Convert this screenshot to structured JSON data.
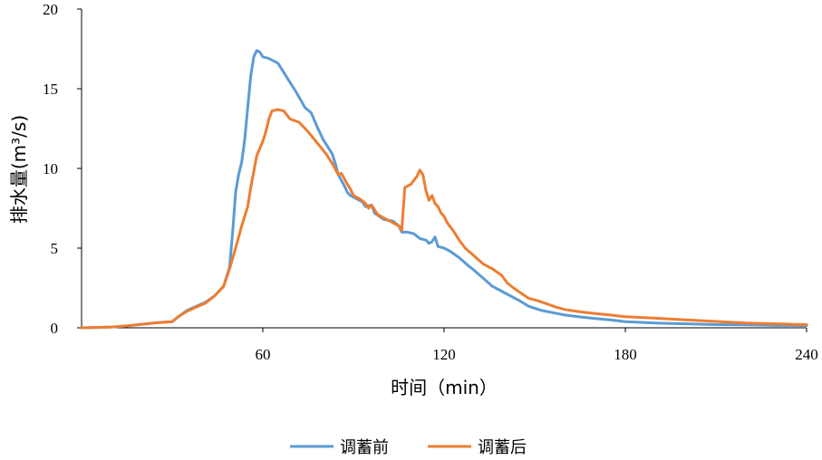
{
  "chart_data": {
    "type": "line",
    "xlabel": "时间（min）",
    "ylabel": "排水量(m³/s)",
    "xlim": [
      0,
      240
    ],
    "ylim": [
      0,
      20
    ],
    "x_ticks": [
      "60",
      "120",
      "180",
      "240"
    ],
    "y_ticks": [
      "0",
      "5",
      "10",
      "15",
      "20"
    ],
    "grid": false,
    "legend_position": "bottom",
    "series": [
      {
        "name": "调蓄前",
        "color": "#5b9bd5",
        "points": [
          [
            0,
            0
          ],
          [
            5,
            0.02
          ],
          [
            10,
            0.05
          ],
          [
            15,
            0.12
          ],
          [
            20,
            0.22
          ],
          [
            25,
            0.32
          ],
          [
            30,
            0.38
          ],
          [
            32,
            0.7
          ],
          [
            35,
            1.1
          ],
          [
            38,
            1.35
          ],
          [
            41,
            1.6
          ],
          [
            44,
            2.0
          ],
          [
            47,
            2.6
          ],
          [
            49,
            3.8
          ],
          [
            50,
            6.0
          ],
          [
            51,
            8.5
          ],
          [
            52,
            9.6
          ],
          [
            53,
            10.4
          ],
          [
            54,
            11.8
          ],
          [
            55,
            13.8
          ],
          [
            56,
            15.8
          ],
          [
            57,
            17.0
          ],
          [
            58,
            17.4
          ],
          [
            59,
            17.3
          ],
          [
            60,
            17.0
          ],
          [
            62,
            16.9
          ],
          [
            65,
            16.6
          ],
          [
            68,
            15.7
          ],
          [
            71,
            14.8
          ],
          [
            74,
            13.8
          ],
          [
            76,
            13.5
          ],
          [
            78,
            12.6
          ],
          [
            80,
            11.8
          ],
          [
            83,
            10.9
          ],
          [
            84,
            10.3
          ],
          [
            85,
            9.6
          ],
          [
            87,
            8.9
          ],
          [
            88,
            8.5
          ],
          [
            89,
            8.3
          ],
          [
            91,
            8.1
          ],
          [
            93,
            7.9
          ],
          [
            94,
            7.6
          ],
          [
            96,
            7.7
          ],
          [
            97,
            7.2
          ],
          [
            100,
            6.8
          ],
          [
            103,
            6.7
          ],
          [
            105,
            6.4
          ],
          [
            106,
            6.0
          ],
          [
            108,
            6.0
          ],
          [
            110,
            5.9
          ],
          [
            112,
            5.6
          ],
          [
            114,
            5.5
          ],
          [
            115,
            5.3
          ],
          [
            116,
            5.4
          ],
          [
            117,
            5.7
          ],
          [
            118,
            5.1
          ],
          [
            120,
            5.0
          ],
          [
            122,
            4.8
          ],
          [
            125,
            4.4
          ],
          [
            128,
            3.9
          ],
          [
            130,
            3.6
          ],
          [
            133,
            3.1
          ],
          [
            136,
            2.6
          ],
          [
            139,
            2.3
          ],
          [
            142,
            2.0
          ],
          [
            145,
            1.7
          ],
          [
            148,
            1.35
          ],
          [
            152,
            1.1
          ],
          [
            156,
            0.95
          ],
          [
            160,
            0.8
          ],
          [
            165,
            0.68
          ],
          [
            170,
            0.58
          ],
          [
            175,
            0.5
          ],
          [
            180,
            0.38
          ],
          [
            190,
            0.3
          ],
          [
            200,
            0.25
          ],
          [
            210,
            0.2
          ],
          [
            220,
            0.18
          ],
          [
            230,
            0.15
          ],
          [
            240,
            0.14
          ]
        ]
      },
      {
        "name": "调蓄后",
        "color": "#ed7d31",
        "points": [
          [
            0,
            0
          ],
          [
            5,
            0.02
          ],
          [
            10,
            0.05
          ],
          [
            15,
            0.12
          ],
          [
            20,
            0.22
          ],
          [
            25,
            0.32
          ],
          [
            30,
            0.38
          ],
          [
            32,
            0.7
          ],
          [
            35,
            1.05
          ],
          [
            38,
            1.3
          ],
          [
            41,
            1.55
          ],
          [
            44,
            2.0
          ],
          [
            47,
            2.6
          ],
          [
            49,
            3.7
          ],
          [
            51,
            5.0
          ],
          [
            53,
            6.4
          ],
          [
            55,
            7.6
          ],
          [
            56,
            8.8
          ],
          [
            58,
            10.8
          ],
          [
            60,
            11.7
          ],
          [
            61,
            12.3
          ],
          [
            62,
            13.1
          ],
          [
            63,
            13.6
          ],
          [
            65,
            13.7
          ],
          [
            67,
            13.6
          ],
          [
            69,
            13.1
          ],
          [
            72,
            12.9
          ],
          [
            75,
            12.3
          ],
          [
            78,
            11.6
          ],
          [
            81,
            10.9
          ],
          [
            83,
            10.3
          ],
          [
            85,
            9.6
          ],
          [
            86,
            9.7
          ],
          [
            88,
            9.0
          ],
          [
            89,
            8.7
          ],
          [
            90,
            8.3
          ],
          [
            92,
            8.1
          ],
          [
            94,
            7.8
          ],
          [
            95,
            7.5
          ],
          [
            96,
            7.7
          ],
          [
            98,
            7.1
          ],
          [
            100,
            6.9
          ],
          [
            103,
            6.6
          ],
          [
            105,
            6.4
          ],
          [
            106,
            6.1
          ],
          [
            107,
            8.8
          ],
          [
            109,
            9.0
          ],
          [
            111,
            9.5
          ],
          [
            112,
            9.9
          ],
          [
            113,
            9.6
          ],
          [
            114,
            8.6
          ],
          [
            115,
            8.0
          ],
          [
            116,
            8.3
          ],
          [
            117,
            7.8
          ],
          [
            118,
            7.6
          ],
          [
            119,
            7.2
          ],
          [
            120,
            7.0
          ],
          [
            121,
            6.6
          ],
          [
            123,
            6.1
          ],
          [
            125,
            5.5
          ],
          [
            127,
            5.0
          ],
          [
            130,
            4.5
          ],
          [
            133,
            4.0
          ],
          [
            136,
            3.7
          ],
          [
            139,
            3.3
          ],
          [
            141,
            2.8
          ],
          [
            143,
            2.5
          ],
          [
            146,
            2.1
          ],
          [
            148,
            1.85
          ],
          [
            151,
            1.7
          ],
          [
            154,
            1.5
          ],
          [
            157,
            1.3
          ],
          [
            160,
            1.15
          ],
          [
            165,
            1.0
          ],
          [
            170,
            0.9
          ],
          [
            175,
            0.8
          ],
          [
            180,
            0.7
          ],
          [
            190,
            0.6
          ],
          [
            200,
            0.5
          ],
          [
            210,
            0.4
          ],
          [
            220,
            0.3
          ],
          [
            230,
            0.25
          ],
          [
            240,
            0.2
          ]
        ]
      }
    ]
  }
}
